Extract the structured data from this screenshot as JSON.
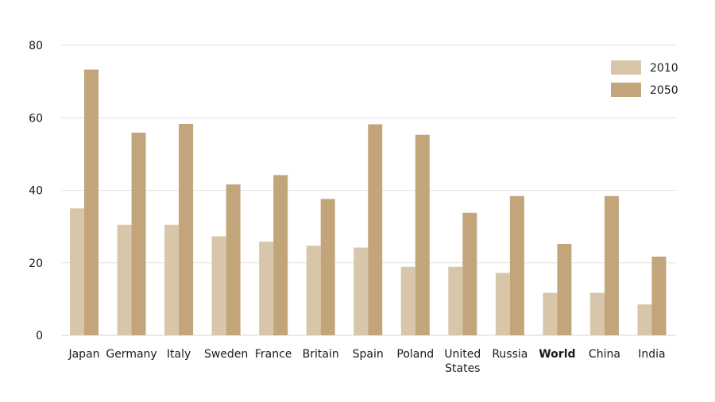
{
  "chart_data": {
    "type": "bar",
    "categories": [
      "Japan",
      "Germany",
      "Italy",
      "Sweden",
      "France",
      "Britain",
      "Spain",
      "Poland",
      "United States",
      "Russia",
      "World",
      "China",
      "India"
    ],
    "category_lines": [
      [
        "Japan"
      ],
      [
        "Germany"
      ],
      [
        "Italy"
      ],
      [
        "Sweden"
      ],
      [
        "France"
      ],
      [
        "Britain"
      ],
      [
        "Spain"
      ],
      [
        "Poland"
      ],
      [
        "United",
        "States"
      ],
      [
        "Russia"
      ],
      [
        "World"
      ],
      [
        "China"
      ],
      [
        "India"
      ]
    ],
    "highlighted_category": "World",
    "series": [
      {
        "name": "2010",
        "color": "#d8c6aa",
        "values": [
          35,
          30.5,
          30.5,
          27.3,
          25.8,
          24.7,
          24.2,
          18.9,
          18.9,
          17.2,
          11.7,
          11.7,
          8.5
        ]
      },
      {
        "name": "2050",
        "color": "#c2a57a",
        "values": [
          73.3,
          55.9,
          58.3,
          41.6,
          44.2,
          37.6,
          58.2,
          55.3,
          33.8,
          38.4,
          25.2,
          38.4,
          21.7
        ]
      }
    ],
    "ylim": [
      0,
      80
    ],
    "yticks": [
      0,
      20,
      40,
      60,
      80
    ],
    "grid": true,
    "legend_position": "top-right",
    "title": "",
    "xlabel": "",
    "ylabel": ""
  }
}
